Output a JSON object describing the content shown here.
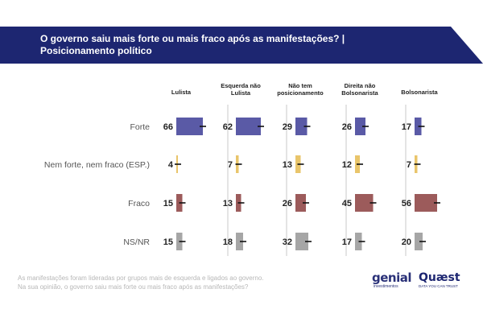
{
  "header": {
    "title_line1": "O governo saiu mais forte ou mais fraco após as manifestações? |",
    "title_line2": "Posicionamento político"
  },
  "chart_data": {
    "type": "bar",
    "title": "O governo saiu mais forte ou mais fraco após as manifestações? | Posicionamento político",
    "groups": [
      "Lulista",
      "Esquerda não Lulista",
      "Não tem posicionamento",
      "Direita não Bolsonarista",
      "Bolsonarista"
    ],
    "categories": [
      "Forte",
      "Nem forte, nem fraco (ESP.)",
      "Fraco",
      "NS/NR"
    ],
    "category_colors": [
      "#5a5aa6",
      "#e9c56b",
      "#9c5b5b",
      "#a6a6a6"
    ],
    "series": [
      {
        "name": "Lulista",
        "values": [
          66,
          4,
          15,
          15
        ]
      },
      {
        "name": "Esquerda não Lulista",
        "values": [
          62,
          7,
          13,
          18
        ]
      },
      {
        "name": "Não tem posicionamento",
        "values": [
          29,
          13,
          26,
          32
        ]
      },
      {
        "name": "Direita não Bolsonarista",
        "values": [
          26,
          12,
          45,
          17
        ]
      },
      {
        "name": "Bolsonarista",
        "values": [
          17,
          7,
          56,
          20
        ]
      }
    ],
    "error_bars": true,
    "ylim": [
      0,
      100
    ]
  },
  "footnote": {
    "line1": "As manifestações foram lideradas por grupos mais de esquerda e ligados ao governo.",
    "line2": "Na sua opinião, o governo saiu mais forte ou mais fraco após as manifestações?"
  },
  "logos": {
    "genial_word": "genial",
    "genial_sub": "investimentos",
    "quaest_word": "Quæst",
    "quaest_sub": "DATA YOU CAN TRUST"
  }
}
